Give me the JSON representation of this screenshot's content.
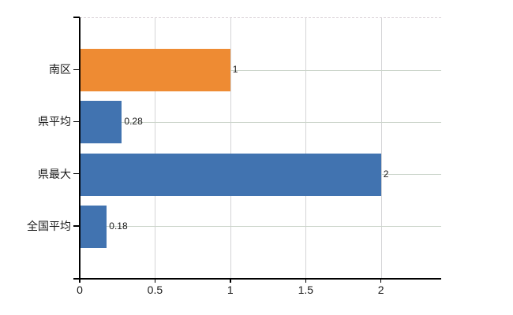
{
  "chart_data": {
    "type": "bar",
    "orientation": "horizontal",
    "title": "",
    "xlabel": "",
    "ylabel": "",
    "categories": [
      "南区",
      "県平均",
      "県最大",
      "全国平均"
    ],
    "values": [
      1,
      0.28,
      2,
      0.18
    ],
    "value_labels": [
      "1",
      "0.28",
      "2",
      "0.18"
    ],
    "bar_colors": [
      "#ee8b33",
      "#4173b0",
      "#4173b0",
      "#4173b0"
    ],
    "xlim": [
      0,
      2.4
    ],
    "xticks": [
      0,
      0.5,
      1,
      1.5,
      2
    ],
    "xtick_labels": [
      "0",
      "0.5",
      "1",
      "1.5",
      "2"
    ],
    "grid": "on",
    "legend": "none"
  },
  "colors": {
    "accent_orange": "#ee8b33",
    "accent_blue": "#4173b0",
    "axis": "#000000",
    "grid_horizontal": "#ccd5cb",
    "grid_vertical": "#d4d4d6",
    "plot_top_border_dashed": "#d8d0d6",
    "text": "#1a1a1a",
    "background": "#ffffff"
  }
}
